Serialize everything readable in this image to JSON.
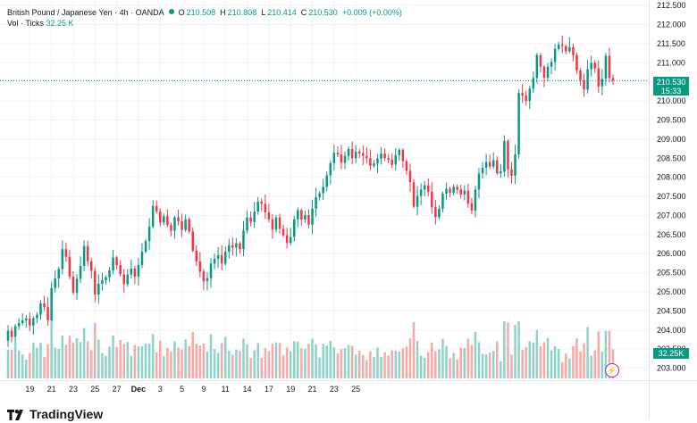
{
  "header": {
    "symbol": "British Pound / Japanese Yen · 4h · OANDA",
    "o_label": "O",
    "o": "210.508",
    "h_label": "H",
    "h": "210.808",
    "l_label": "L",
    "l": "210.414",
    "c_label": "C",
    "c": "210.530",
    "change": "+0.009 (+0.00%)",
    "vol_label": "Vol · Ticks",
    "vol_value": "32.25 K"
  },
  "price_tag": {
    "price": "210.530",
    "countdown": "15:33"
  },
  "volume_tag": "32.25K",
  "brand": "TradingView",
  "colors": {
    "up": "#089981",
    "down": "#f23645",
    "up_vol": "#8fd3c8",
    "down_vol": "#f7a9a7",
    "grid": "#f0f3fa"
  },
  "chart_data": {
    "type": "candlestick",
    "title": "British Pound / Japanese Yen · 4h · OANDA",
    "y_axis_labels": [
      "212.500",
      "212.000",
      "211.500",
      "211.000",
      "210.500",
      "210.000",
      "209.500",
      "209.000",
      "208.500",
      "208.000",
      "207.500",
      "207.000",
      "206.500",
      "206.000",
      "205.500",
      "205.000",
      "204.500",
      "204.000",
      "203.500",
      "203.000"
    ],
    "ylim": [
      202.85,
      212.55
    ],
    "x_tick_labels": [
      "19",
      "21",
      "23",
      "25",
      "27",
      "Dec",
      "3",
      "5",
      "9",
      "11",
      "14",
      "17",
      "19",
      "21",
      "23",
      "25"
    ],
    "x_tick_index": [
      6,
      12,
      18,
      24,
      30,
      36,
      42,
      48,
      54,
      60,
      66,
      72,
      78,
      84,
      90,
      96
    ],
    "current_price": 210.53,
    "close_series": [
      203.98,
      203.82,
      204.1,
      204.18,
      204.25,
      204.3,
      204.12,
      204.31,
      204.4,
      204.7,
      204.6,
      204.25,
      205.1,
      205.35,
      205.6,
      206.12,
      205.92,
      205.4,
      204.98,
      205.34,
      205.68,
      206.2,
      205.8,
      205.55,
      204.93,
      205.21,
      205.3,
      205.38,
      205.56,
      205.9,
      205.7,
      205.46,
      205.2,
      205.45,
      205.61,
      205.4,
      205.7,
      206.05,
      206.33,
      206.71,
      207.25,
      207.1,
      206.82,
      206.98,
      206.75,
      206.6,
      206.95,
      206.85,
      206.62,
      206.9,
      206.58,
      206.08,
      205.8,
      205.53,
      205.28,
      205.36,
      205.74,
      205.87,
      205.96,
      205.74,
      206.05,
      206.22,
      206.16,
      206.27,
      206.12,
      206.6,
      206.95,
      206.83,
      207.1,
      207.36,
      207.31,
      207.08,
      206.9,
      206.63,
      206.95,
      206.65,
      206.48,
      206.28,
      206.44,
      206.9,
      207.14,
      206.89,
      207.01,
      206.76,
      207.18,
      207.48,
      207.58,
      207.75,
      208.05,
      208.37,
      208.64,
      208.6,
      208.38,
      208.56,
      208.74,
      208.5,
      208.67,
      208.63,
      208.56,
      208.5,
      208.3,
      208.36,
      208.49,
      208.62,
      208.5,
      208.46,
      208.33,
      208.58,
      208.72,
      208.42,
      208.17,
      207.87,
      207.23,
      207.51,
      207.68,
      207.79,
      207.62,
      207.22,
      206.96,
      207.18,
      207.57,
      207.7,
      207.6,
      207.75,
      207.68,
      207.55,
      207.65,
      207.32,
      207.13,
      207.68,
      208.1,
      208.25,
      208.4,
      208.28,
      208.45,
      208.1,
      208.15,
      208.95,
      208.21,
      208.04,
      208.6,
      210.21,
      210.14,
      210.0,
      210.32,
      210.6,
      211.2,
      210.9,
      210.61,
      210.9,
      211.02,
      211.36,
      211.48,
      211.44,
      211.3,
      211.41,
      211.2,
      210.8,
      210.55,
      210.3,
      210.83,
      211.0,
      210.85,
      210.38,
      210.58,
      211.18,
      210.6,
      210.53
    ]
  }
}
